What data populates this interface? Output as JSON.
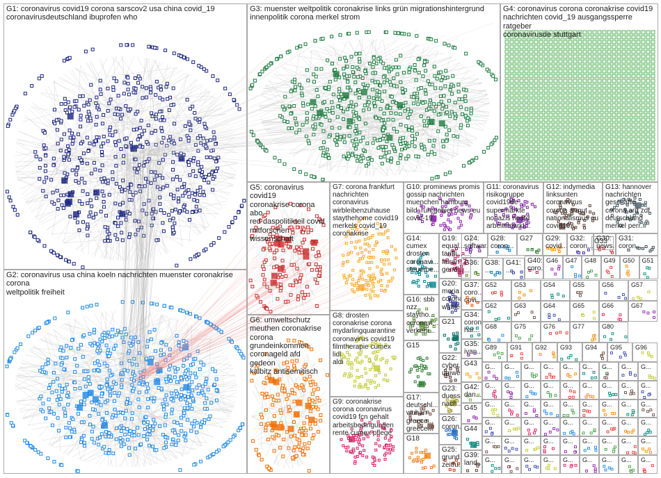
{
  "groups": [
    {
      "id": "G1",
      "label": "G1: coronavirus covid19 corona sarscov2 usa china covid_19\ncoronavirusdeutschland ibuprofen who",
      "color": "#1a237e"
    },
    {
      "id": "G2",
      "label": "G2: coronavirus usa china koeln nachrichten muenster coronakrise corona\nweltpolitik freiheit",
      "color": "#1e88e5"
    },
    {
      "id": "G3",
      "label": "G3: muenster weltpolitik coronakrise links grün migrationshintergrund\ninnenpolitik corona merkel strom",
      "color": "#1b7a3e"
    },
    {
      "id": "G4",
      "label": "G4: coronavirus corona coronakrise covid19\nnachrichten covid_19 ausgangssperre ratgeber\ncoronavirusde stuttgart",
      "color": "#4caf50"
    },
    {
      "id": "G5",
      "label": "G5: coronavirus covid19\ncoronakrise corona abo\nred daspolitikteil covid\nmitforschen wissenschaft",
      "color": "#c62828"
    },
    {
      "id": "G6",
      "label": "G6: umweltschutz\nmeuthen coronakrise\ncorona grundeinkommen\ncoronageld afd gedeon\nkalbitz antisemitisch",
      "color": "#ef6c00"
    },
    {
      "id": "G7",
      "label": "G7: corona frankfurt\nnachrichten\ncoronavirus\nwirbleibenzuhause\nstaythehome covid19\nmerkels covid_19\ncoronakrise",
      "color": "#f9a825"
    },
    {
      "id": "G8",
      "label": "G8: drosten\ncoronakrise corona\nmydarlingquarantine\ncoronavirus covid19\nfilmtherapie cumex lidl\naldi",
      "color": "#c0ca33"
    },
    {
      "id": "G9",
      "label": "G9: coronakrise\ncorona coronavirus\ncovid19 fcn gehalt\narbeitsbedingungen\nrente cumex pflege",
      "color": "#d81b60"
    },
    {
      "id": "G10",
      "label": "G10: prominews promis\ngossip nachrichten\nmuenchen hamburg\nbild_ruhrgebiet news eu\ncovid-19",
      "color": "#8e24aa"
    },
    {
      "id": "G11",
      "label": "G11: coronavirus\nrisikogruppe\ncovid19de\nsupermärkte\nnonazis noafd\narbeitsmarkt...",
      "color": "#7b1fa2"
    },
    {
      "id": "G12",
      "label": "G12: indymedia\nlinksunten\ncoronavirus\ncorona armut\nnationalismus eu\ncovid19...",
      "color": "#5d4037"
    },
    {
      "id": "G13",
      "label": "G13: hannover\nnachrichten\ngeschäfte\ncorona ard zdf\ndeutschland\nmerkel perr...",
      "color": "#455a64"
    },
    {
      "id": "G14",
      "label": "G14:\ncumex\ndrosten\ncoronavi...\nsteuerbe...",
      "color": "#00838f"
    },
    {
      "id": "G15",
      "label": "G15",
      "color": "#2e7d32"
    },
    {
      "id": "G16",
      "label": "G16: sbb\nnzz\nstaytho...\ncoronavi...\nverkehr...",
      "color": "#558b2f"
    },
    {
      "id": "G17",
      "label": "G17:\ndeutschl...\nwuhan\ngreece...\ngreece...",
      "color": "#6d4c41"
    },
    {
      "id": "G18",
      "label": "G18",
      "color": "#f57f17"
    },
    {
      "id": "G19",
      "label": "G19:\nequal...\ntariffi...\nfairan...\ngend...",
      "color": "#ad1457"
    },
    {
      "id": "G20",
      "label": "G20:\nmoria\ncorona\nwirble...",
      "color": "#283593"
    },
    {
      "id": "G21",
      "label": "G21",
      "color": "#00695c"
    },
    {
      "id": "G22",
      "label": "G22:\ncyber...\numwe...",
      "color": "#4e342e"
    },
    {
      "id": "G23",
      "label": "G23:\nduess...\nnach...",
      "color": "#9e9d24"
    },
    {
      "id": "G24",
      "label": "G24:\nsoftwar...\n...",
      "color": "#6a1b9a"
    },
    {
      "id": "G25",
      "label": "G25:\ngrund...\nzeitfu...",
      "color": "#bf360c"
    },
    {
      "id": "G26",
      "label": "G26:\ncoron...",
      "color": "#1565c0"
    },
    {
      "id": "G27",
      "label": "G27",
      "color": "#2e7d32"
    },
    {
      "id": "G28",
      "label": "G28:\ncoron...",
      "color": "#0277bd"
    },
    {
      "id": "G29",
      "label": "G29:\ncovid...",
      "color": "#ff8f00"
    },
    {
      "id": "G30",
      "label": "G30:\nnews...",
      "color": "#c62828"
    },
    {
      "id": "G31",
      "label": "G31:\ncoron...",
      "color": "#37474f"
    },
    {
      "id": "G32",
      "label": "G32:\ncoron...",
      "color": "#4527a0"
    },
    {
      "id": "G33",
      "label": "G33",
      "color": "#ad1457"
    },
    {
      "id": "G34",
      "label": "G34:\ncoron...\nhar...",
      "color": "#00838f"
    },
    {
      "id": "G35",
      "label": "G35:\nivan...",
      "color": "#6a1b9a"
    },
    {
      "id": "G36",
      "label": "G36:\n...",
      "color": "#558b2f"
    },
    {
      "id": "G37",
      "label": "G37:\ncoro...\ncovi...",
      "color": "#e65100"
    },
    {
      "id": "G38",
      "label": "G38:\n...",
      "color": "#0277bd"
    },
    {
      "id": "G39",
      "label": "G39:\nland...",
      "color": "#5d4037"
    },
    {
      "id": "G40",
      "label": "G40:\ncoro...",
      "color": "#c2185b"
    },
    {
      "id": "G41",
      "label": "G41:\n...",
      "color": "#303f9f"
    },
    {
      "id": "G42",
      "label": "G42:\ndan...",
      "color": "#7cb342"
    },
    {
      "id": "G43",
      "label": "G43",
      "color": "#f9a825"
    },
    {
      "id": "G44",
      "label": "G44",
      "color": "#00897b"
    },
    {
      "id": "G45",
      "label": "G45",
      "color": "#8e24aa"
    }
  ],
  "small_labels_a": [
    "G46",
    "G47",
    "G48",
    "G49",
    "G50",
    "G51",
    "G52",
    "G53",
    "G54",
    "G55",
    "G56",
    "G57"
  ],
  "small_labels_b": [
    "G62",
    "G63",
    "G64",
    "G65",
    "G66",
    "G67",
    "G68",
    "G75",
    "G76",
    "G77",
    "G80"
  ],
  "small_labels_c": [
    "G89",
    "G91",
    "G92",
    "G93",
    "G94",
    "G95",
    "G96"
  ],
  "filler_label": "G...",
  "node_color_g4": "#4caf50"
}
